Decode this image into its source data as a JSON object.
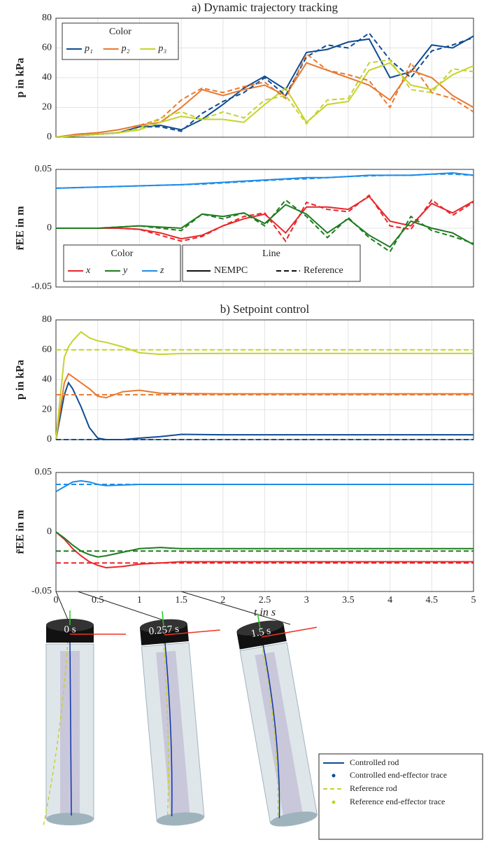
{
  "chart_data": [
    {
      "type": "line",
      "title": "a) Dynamic trajectory tracking",
      "ylabel": "p in kPa",
      "grid": true,
      "x": [
        0,
        0.25,
        0.5,
        0.75,
        1,
        1.25,
        1.5,
        1.75,
        2,
        2.25,
        2.5,
        2.75,
        3,
        3.25,
        3.5,
        3.75,
        4,
        4.25,
        4.5,
        4.75,
        5
      ],
      "xlim": [
        0,
        5
      ],
      "xticks": [
        0,
        0.5,
        1,
        1.5,
        2,
        2.5,
        3,
        3.5,
        4,
        4.5,
        5
      ],
      "ylim": [
        0,
        80
      ],
      "yticks": [
        0,
        20,
        40,
        60,
        80
      ],
      "legend_title": "Color",
      "series": [
        {
          "name": "p₁",
          "color": "#0e4c92",
          "values": [
            0,
            1,
            2,
            3,
            7,
            8,
            5,
            12,
            22,
            33,
            41,
            32,
            57,
            59,
            64,
            66,
            40,
            44,
            62,
            60,
            68
          ]
        },
        {
          "name": "p₂",
          "color": "#e8792e",
          "values": [
            0,
            2,
            3,
            5,
            8,
            10,
            20,
            32,
            28,
            32,
            35,
            28,
            50,
            45,
            40,
            35,
            25,
            45,
            40,
            28,
            20
          ]
        },
        {
          "name": "p₃",
          "color": "#c5d32b",
          "values": [
            0,
            1,
            2,
            3,
            5,
            10,
            14,
            12,
            12,
            10,
            22,
            33,
            10,
            22,
            24,
            45,
            50,
            35,
            32,
            42,
            48
          ]
        },
        {
          "color": "#0e4c92",
          "dash": true,
          "values": [
            0,
            1,
            2,
            3,
            7,
            7,
            4,
            16,
            24,
            30,
            40,
            28,
            54,
            62,
            60,
            70,
            52,
            40,
            58,
            62,
            67
          ]
        },
        {
          "color": "#e8792e",
          "dash": true,
          "values": [
            0,
            2,
            3,
            5,
            8,
            12,
            25,
            33,
            30,
            34,
            37,
            26,
            56,
            45,
            42,
            38,
            20,
            50,
            30,
            26,
            17
          ]
        },
        {
          "color": "#c5d32b",
          "dash": true,
          "values": [
            0,
            1,
            2,
            3,
            6,
            13,
            17,
            12,
            17,
            13,
            25,
            28,
            9,
            25,
            26,
            50,
            52,
            32,
            30,
            46,
            44
          ]
        }
      ]
    },
    {
      "type": "line",
      "ylabel": "r̃EE in m",
      "grid": true,
      "x": [
        0,
        0.25,
        0.5,
        0.75,
        1,
        1.25,
        1.5,
        1.75,
        2,
        2.25,
        2.5,
        2.75,
        3,
        3.25,
        3.5,
        3.75,
        4,
        4.25,
        4.5,
        4.75,
        5
      ],
      "xlim": [
        0,
        5
      ],
      "xticks": [
        0,
        0.5,
        1,
        1.5,
        2,
        2.5,
        3,
        3.5,
        4,
        4.5,
        5
      ],
      "ylim": [
        -0.05,
        0.05
      ],
      "yticks": [
        -0.05,
        0,
        0.05
      ],
      "legend_title": "Color",
      "line_legend_title": "Line",
      "line_legend": [
        "NEMPC",
        "Reference"
      ],
      "series": [
        {
          "name": "x",
          "color": "#e8262a",
          "values": [
            0,
            0,
            0,
            0,
            -0.001,
            -0.004,
            -0.009,
            -0.006,
            0.002,
            0.008,
            0.012,
            -0.004,
            0.018,
            0.018,
            0.016,
            0.027,
            0.006,
            0.002,
            0.021,
            0.013,
            0.023
          ]
        },
        {
          "name": "y",
          "color": "#1e7b1e",
          "values": [
            0,
            0,
            0,
            0.001,
            0.002,
            0.001,
            0,
            0.012,
            0.01,
            0.013,
            0.004,
            0.02,
            0.012,
            -0.004,
            0.008,
            -0.006,
            -0.016,
            0.006,
            0,
            -0.004,
            -0.014
          ]
        },
        {
          "name": "z",
          "color": "#1e8ce8",
          "values": [
            0.034,
            0.0345,
            0.035,
            0.0355,
            0.036,
            0.0365,
            0.037,
            0.038,
            0.039,
            0.04,
            0.041,
            0.042,
            0.043,
            0.043,
            0.044,
            0.045,
            0.045,
            0.045,
            0.046,
            0.047,
            0.045
          ]
        },
        {
          "color": "#e8262a",
          "dash": true,
          "values": [
            0,
            0,
            0,
            0,
            -0.001,
            -0.006,
            -0.011,
            -0.007,
            0.002,
            0.01,
            0.013,
            -0.011,
            0.022,
            0.016,
            0.014,
            0.028,
            0.002,
            -0.001,
            0.024,
            0.011,
            0.022
          ]
        },
        {
          "color": "#1e7b1e",
          "dash": true,
          "values": [
            0,
            0,
            0,
            0.001,
            0.002,
            0,
            -0.002,
            0.012,
            0.008,
            0.013,
            0.002,
            0.024,
            0.01,
            -0.008,
            0.009,
            -0.008,
            -0.02,
            0.01,
            -0.002,
            -0.007,
            -0.013
          ]
        },
        {
          "color": "#1e8ce8",
          "dash": true,
          "values": [
            0.034,
            0.0345,
            0.035,
            0.0355,
            0.036,
            0.0365,
            0.037,
            0.0375,
            0.0385,
            0.0395,
            0.0405,
            0.0415,
            0.042,
            0.043,
            0.044,
            0.0445,
            0.045,
            0.045,
            0.046,
            0.046,
            0.045
          ]
        }
      ]
    },
    {
      "type": "line",
      "title": "b) Setpoint control",
      "ylabel": "p in kPa",
      "grid": true,
      "x": [
        0,
        0.1,
        0.15,
        0.2,
        0.3,
        0.4,
        0.5,
        0.6,
        0.8,
        1,
        1.25,
        1.5,
        2,
        3,
        4,
        5
      ],
      "xlim": [
        0,
        5
      ],
      "xticks": [
        0,
        0.5,
        1,
        1.5,
        2,
        2.5,
        3,
        3.5,
        4,
        4.5,
        5
      ],
      "ylim": [
        0,
        80
      ],
      "yticks": [
        0,
        20,
        40,
        60,
        80
      ],
      "series": [
        {
          "color": "#0e4c92",
          "values": [
            0,
            30,
            38,
            34,
            22,
            8,
            1,
            0,
            0,
            1,
            2,
            3.5,
            3.2,
            3.2,
            3.2,
            3.2
          ]
        },
        {
          "color": "#e8792e",
          "values": [
            0,
            38,
            44,
            42,
            38,
            34,
            29,
            28,
            32,
            33,
            31,
            30.8,
            30.6,
            30.6,
            30.6,
            30.6
          ]
        },
        {
          "color": "#c5d32b",
          "values": [
            0,
            55,
            62,
            66,
            72,
            68,
            66,
            65,
            62,
            58,
            57,
            57.5,
            57.6,
            57.6,
            57.6,
            57.6
          ]
        },
        {
          "color": "#0e4c92",
          "dash": true,
          "values": [
            0,
            0,
            0,
            0,
            0,
            0,
            0,
            0,
            0,
            0,
            0,
            0,
            0,
            0,
            0,
            0
          ]
        },
        {
          "color": "#e8792e",
          "dash": true,
          "values": [
            30,
            30,
            30,
            30,
            30,
            30,
            30,
            30,
            30,
            30,
            30,
            30,
            30,
            30,
            30,
            30
          ]
        },
        {
          "color": "#c5d32b",
          "dash": true,
          "values": [
            60,
            60,
            60,
            60,
            60,
            60,
            60,
            60,
            60,
            60,
            60,
            60,
            60,
            60,
            60,
            60
          ]
        }
      ]
    },
    {
      "type": "line",
      "ylabel": "r̃EE in m",
      "xlabel": "t in s",
      "grid": true,
      "x": [
        0,
        0.1,
        0.15,
        0.2,
        0.3,
        0.4,
        0.5,
        0.6,
        0.8,
        1,
        1.25,
        1.5,
        2,
        3,
        4,
        5
      ],
      "xlim": [
        0,
        5
      ],
      "xticks": [
        0,
        0.5,
        1,
        1.5,
        2,
        2.5,
        3,
        3.5,
        4,
        4.5,
        5
      ],
      "ylim": [
        -0.05,
        0.05
      ],
      "yticks": [
        -0.05,
        0,
        0.05
      ],
      "series": [
        {
          "color": "#e8262a",
          "values": [
            0,
            -0.006,
            -0.01,
            -0.014,
            -0.02,
            -0.025,
            -0.028,
            -0.03,
            -0.029,
            -0.027,
            -0.026,
            -0.025,
            -0.025,
            -0.025,
            -0.025,
            -0.025
          ]
        },
        {
          "color": "#1e7b1e",
          "values": [
            0,
            -0.005,
            -0.008,
            -0.011,
            -0.016,
            -0.019,
            -0.021,
            -0.02,
            -0.017,
            -0.014,
            -0.013,
            -0.014,
            -0.014,
            -0.014,
            -0.014,
            -0.014
          ]
        },
        {
          "color": "#1e8ce8",
          "values": [
            0.034,
            0.038,
            0.04,
            0.042,
            0.043,
            0.042,
            0.04,
            0.039,
            0.0395,
            0.04,
            0.04,
            0.04,
            0.04,
            0.04,
            0.04,
            0.04
          ]
        },
        {
          "color": "#e8262a",
          "dash": true,
          "values": [
            -0.026,
            -0.026,
            -0.026,
            -0.026,
            -0.026,
            -0.026,
            -0.026,
            -0.026,
            -0.026,
            -0.026,
            -0.026,
            -0.026,
            -0.026,
            -0.026,
            -0.026,
            -0.026
          ]
        },
        {
          "color": "#1e7b1e",
          "dash": true,
          "values": [
            -0.016,
            -0.016,
            -0.016,
            -0.016,
            -0.016,
            -0.016,
            -0.016,
            -0.016,
            -0.016,
            -0.016,
            -0.016,
            -0.016,
            -0.016,
            -0.016,
            -0.016,
            -0.016
          ]
        },
        {
          "color": "#1e8ce8",
          "dash": true,
          "values": [
            0.04,
            0.04,
            0.04,
            0.04,
            0.04,
            0.04,
            0.04,
            0.04,
            0.04,
            0.04,
            0.04,
            0.04,
            0.04,
            0.04,
            0.04,
            0.04
          ]
        }
      ]
    }
  ],
  "illustration": {
    "time_labels": [
      "0 s",
      "0.257 s",
      "1.5 s"
    ],
    "legend": [
      "Controlled rod",
      "Controlled end-effector trace",
      "Reference rod",
      "Reference end-effector trace"
    ]
  }
}
